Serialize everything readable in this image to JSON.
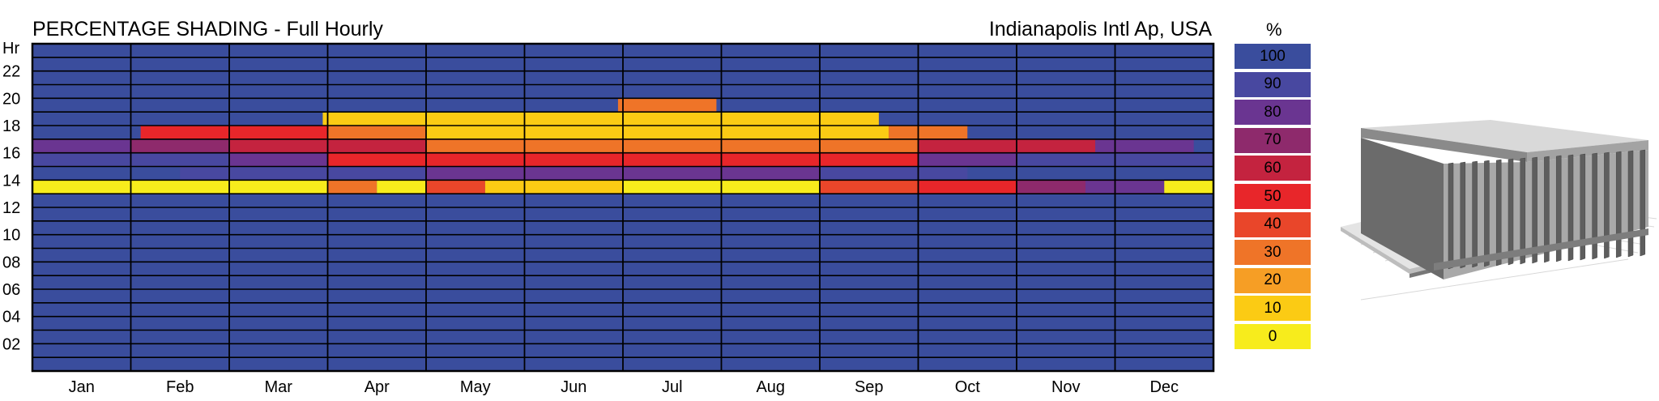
{
  "chart_data": {
    "type": "heatmap",
    "title": "PERCENTAGE SHADING - Full Hourly",
    "location": "Indianapolis Intl Ap, USA",
    "y_axis_label": "Hr",
    "y_tick_labels": [
      "22",
      "20",
      "18",
      "16",
      "14",
      "12",
      "10",
      "08",
      "06",
      "04",
      "02"
    ],
    "x_labels": [
      "Jan",
      "Feb",
      "Mar",
      "Apr",
      "May",
      "Jun",
      "Jul",
      "Aug",
      "Sep",
      "Oct",
      "Nov",
      "Dec"
    ],
    "legend_unit": "%",
    "legend": [
      {
        "value": "100",
        "color": "#3a4d9d"
      },
      {
        "value": "90",
        "color": "#4848a0"
      },
      {
        "value": "80",
        "color": "#6a3591"
      },
      {
        "value": "70",
        "color": "#8e2a6c"
      },
      {
        "value": "60",
        "color": "#c4233f"
      },
      {
        "value": "50",
        "color": "#e8262a"
      },
      {
        "value": "40",
        "color": "#e9462a"
      },
      {
        "value": "30",
        "color": "#ef7428"
      },
      {
        "value": "20",
        "color": "#f69e25"
      },
      {
        "value": "10",
        "color": "#fbcb14"
      },
      {
        "value": "0",
        "color": "#f7ec1c"
      }
    ],
    "rows": [
      {
        "hour": 19,
        "segments": [
          {
            "from": 5.95,
            "to": 6.95,
            "value": 30
          }
        ]
      },
      {
        "hour": 18,
        "segments": [
          {
            "from": 2.95,
            "to": 8.6,
            "value": 10
          }
        ]
      },
      {
        "hour": 17,
        "segments": [
          {
            "from": 1.1,
            "to": 3.0,
            "value": 50
          },
          {
            "from": 3.0,
            "to": 4.0,
            "value": 30
          },
          {
            "from": 4.0,
            "to": 8.7,
            "value": 10
          },
          {
            "from": 8.7,
            "to": 9.5,
            "value": 30
          }
        ]
      },
      {
        "hour": 16,
        "segments": [
          {
            "from": 0.0,
            "to": 1.0,
            "value": 80
          },
          {
            "from": 1.0,
            "to": 2.0,
            "value": 70
          },
          {
            "from": 2.0,
            "to": 4.0,
            "value": 60
          },
          {
            "from": 4.0,
            "to": 9.0,
            "value": 30
          },
          {
            "from": 9.0,
            "to": 10.8,
            "value": 60
          },
          {
            "from": 10.8,
            "to": 11.8,
            "value": 80
          }
        ]
      },
      {
        "hour": 15,
        "segments": [
          {
            "from": 0.0,
            "to": 2.0,
            "value": 90
          },
          {
            "from": 2.0,
            "to": 3.0,
            "value": 80
          },
          {
            "from": 3.0,
            "to": 9.0,
            "value": 50
          },
          {
            "from": 9.0,
            "to": 10.0,
            "value": 80
          },
          {
            "from": 10.0,
            "to": 12.0,
            "value": 90
          }
        ]
      },
      {
        "hour": 14,
        "segments": [
          {
            "from": 1.5,
            "to": 4.0,
            "value": 90
          },
          {
            "from": 4.0,
            "to": 8.0,
            "value": 80
          },
          {
            "from": 8.0,
            "to": 9.5,
            "value": 90
          }
        ]
      },
      {
        "hour": 13,
        "segments": [
          {
            "from": 0.0,
            "to": 3.0,
            "value": 0
          },
          {
            "from": 3.0,
            "to": 3.5,
            "value": 30
          },
          {
            "from": 3.5,
            "to": 4.0,
            "value": 0
          },
          {
            "from": 4.0,
            "to": 4.6,
            "value": 40
          },
          {
            "from": 4.6,
            "to": 6.0,
            "value": 10
          },
          {
            "from": 6.0,
            "to": 8.0,
            "value": 0
          },
          {
            "from": 8.0,
            "to": 9.0,
            "value": 40
          },
          {
            "from": 9.0,
            "to": 10.0,
            "value": 50
          },
          {
            "from": 10.0,
            "to": 10.7,
            "value": 70
          },
          {
            "from": 10.7,
            "to": 11.5,
            "value": 80
          },
          {
            "from": 11.5,
            "to": 12.0,
            "value": 0
          }
        ]
      }
    ]
  }
}
